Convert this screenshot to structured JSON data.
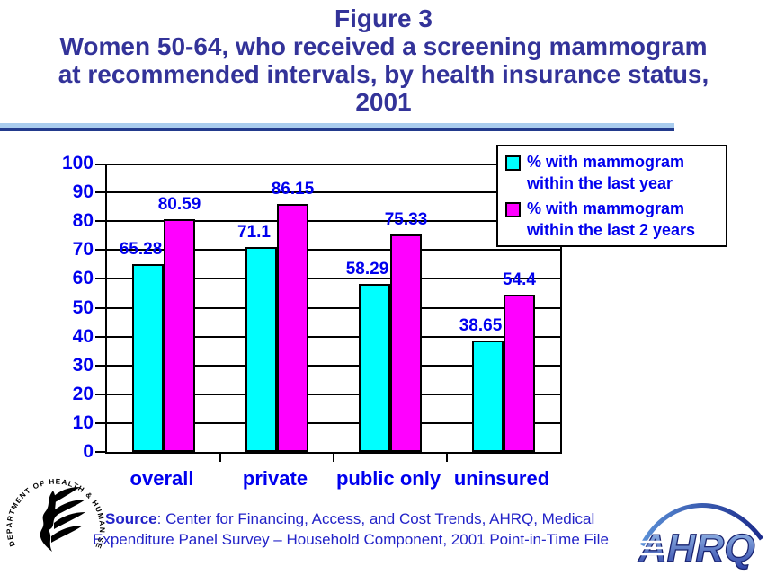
{
  "title": {
    "lines": [
      "Figure 3",
      "Women 50-64, who received a screening mammogram",
      "at recommended intervals, by health insurance status,",
      "2001"
    ]
  },
  "chart_data": {
    "type": "bar",
    "title": "Women 50-64, who received a screening mammogram at recommended intervals, by health insurance status, 2001",
    "categories": [
      "overall",
      "private",
      "public only",
      "uninsured"
    ],
    "series": [
      {
        "name": "% with mammogram within the last year",
        "color": "#00ffff",
        "values": [
          65.28,
          71.1,
          58.29,
          38.65
        ]
      },
      {
        "name": "% with mammogram within the last 2 years",
        "color": "#ff00ff",
        "values": [
          80.59,
          86.15,
          75.33,
          54.4
        ]
      }
    ],
    "xlabel": "",
    "ylabel": "",
    "ylim": [
      0,
      100
    ],
    "ytick_step": 10,
    "grid": true,
    "legend_position": "top-right"
  },
  "legend": {
    "entries": [
      {
        "color": "#00ffff",
        "line1": "% with mammogram",
        "line2": "within the last year"
      },
      {
        "color": "#ff00ff",
        "line1": "% with mammogram",
        "line2": "within the last 2 years"
      }
    ]
  },
  "source": {
    "label": "Source",
    "line1_rest": ": Center for Financing, Access, and Cost Trends, AHRQ, Medical",
    "line2": "Expenditure Panel Survey – Household Component, 2001 Point-in-Time File"
  },
  "logos": {
    "hhs_seal_text": "DEPARTMENT OF HEALTH & HUMAN SERVICES·USA",
    "ahrq_text": "AHRQ"
  },
  "colors": {
    "title_text": "#333399",
    "chart_text": "#0000ee",
    "source_text": "#2323c8",
    "rule_light": "#a9ccee",
    "rule_dark": "#223a8c",
    "gridline": "#000000"
  }
}
